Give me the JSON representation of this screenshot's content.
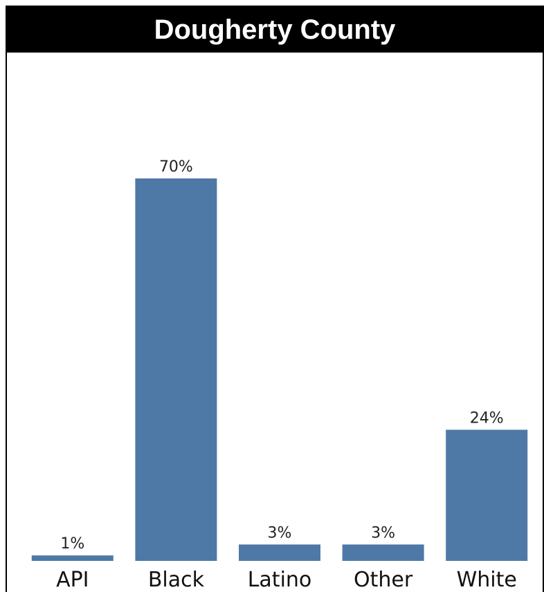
{
  "chart_data": {
    "type": "bar",
    "title": "Dougherty County",
    "categories": [
      "API",
      "Black",
      "Latino",
      "Other",
      "White"
    ],
    "values": [
      1,
      70,
      3,
      3,
      24
    ],
    "value_labels": [
      "1%",
      "70%",
      "3%",
      "3%",
      "24%"
    ],
    "ylim": [
      0,
      70
    ],
    "grid": false,
    "legend": "none",
    "bar_color": "#4e79a7"
  }
}
